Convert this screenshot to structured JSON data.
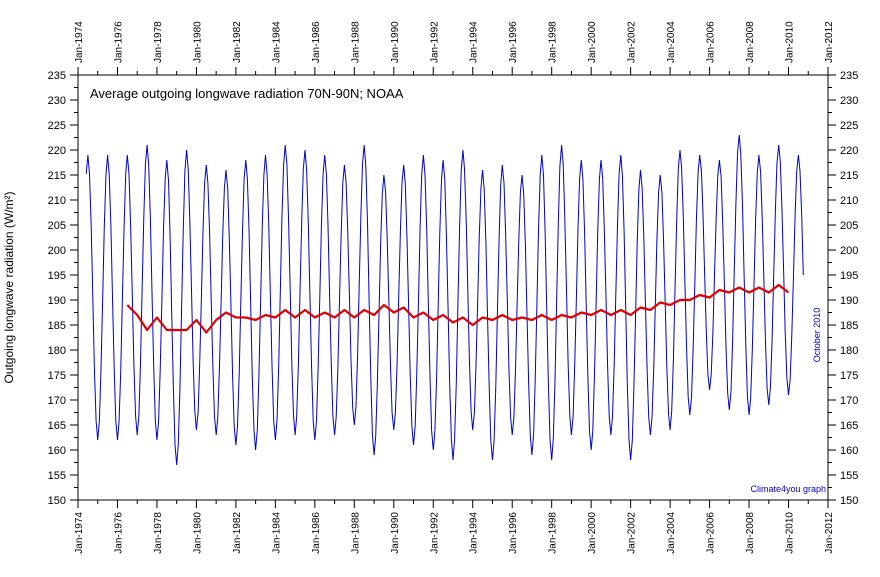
{
  "chart_data": {
    "type": "line",
    "title": "Average outgoing longwave radiation 70N-90N; NOAA",
    "ylabel": "Outgoing longwave radiation (W/m²)",
    "xlabel": "",
    "ylim": [
      150,
      235
    ],
    "xlim": [
      "Jan-1974",
      "Jan-2012"
    ],
    "yticks": [
      150,
      155,
      160,
      165,
      170,
      175,
      180,
      185,
      190,
      195,
      200,
      205,
      210,
      215,
      220,
      225,
      230,
      235
    ],
    "xticks": [
      "Jan-1974",
      "Jan-1976",
      "Jan-1978",
      "Jan-1980",
      "Jan-1982",
      "Jan-1984",
      "Jan-1986",
      "Jan-1988",
      "Jan-1990",
      "Jan-1992",
      "Jan-1994",
      "Jan-1996",
      "Jan-1998",
      "Jan-2000",
      "Jan-2002",
      "Jan-2004",
      "Jan-2006",
      "Jan-2008",
      "Jan-2010",
      "Jan-2012"
    ],
    "grid": false,
    "annotations": [
      "October 2010",
      "Climate4you graph"
    ],
    "series": [
      {
        "color": "#0000cc",
        "style": "monthly",
        "monthly_from": "Jun-1974",
        "annual_extremes": [
          {
            "year": 1974,
            "min": null,
            "max": 219
          },
          {
            "year": 1975,
            "min": 162,
            "max": 219
          },
          {
            "year": 1976,
            "min": 162,
            "max": 219
          },
          {
            "year": 1977,
            "min": 163,
            "max": 221
          },
          {
            "year": 1978,
            "min": 162,
            "max": null
          },
          {
            "year": 1979,
            "min": 157,
            "max": 220
          },
          {
            "year": 1980,
            "min": 164,
            "max": 217
          },
          {
            "year": 1981,
            "min": 163,
            "max": 216
          },
          {
            "year": 1982,
            "min": 161,
            "max": 218
          },
          {
            "year": 1983,
            "min": 160,
            "max": 219
          },
          {
            "year": 1984,
            "min": 162,
            "max": 221
          },
          {
            "year": 1985,
            "min": 163,
            "max": 220
          },
          {
            "year": 1986,
            "min": 162,
            "max": 219
          },
          {
            "year": 1987,
            "min": 163,
            "max": 217
          },
          {
            "year": 1988,
            "min": 165,
            "max": 221
          },
          {
            "year": 1989,
            "min": 159,
            "max": 215
          },
          {
            "year": 1990,
            "min": 164,
            "max": 217
          },
          {
            "year": 1991,
            "min": 161,
            "max": 219
          },
          {
            "year": 1992,
            "min": 160,
            "max": 218
          },
          {
            "year": 1993,
            "min": 158,
            "max": 220
          },
          {
            "year": 1994,
            "min": 164,
            "max": 216
          },
          {
            "year": 1995,
            "min": 158,
            "max": 217
          },
          {
            "year": 1996,
            "min": 163,
            "max": 215
          },
          {
            "year": 1997,
            "min": 159,
            "max": 219
          },
          {
            "year": 1998,
            "min": 158,
            "max": 221
          },
          {
            "year": 1999,
            "min": 163,
            "max": 218
          },
          {
            "year": 2000,
            "min": 160,
            "max": 218
          },
          {
            "year": 2001,
            "min": 163,
            "max": 219
          },
          {
            "year": 2002,
            "min": 158,
            "max": 216
          },
          {
            "year": 2003,
            "min": 163,
            "max": 215
          },
          {
            "year": 2004,
            "min": 164,
            "max": 220
          },
          {
            "year": 2005,
            "min": 167,
            "max": 219
          },
          {
            "year": 2006,
            "min": 172,
            "max": 218
          },
          {
            "year": 2007,
            "min": 168,
            "max": 223
          },
          {
            "year": 2008,
            "min": 167,
            "max": 219
          },
          {
            "year": 2009,
            "min": 169,
            "max": 221
          },
          {
            "year": 2010,
            "min": 171,
            "max": 219
          }
        ]
      },
      {
        "color": "#e00000",
        "style": "running-mean",
        "x": [
          "Jul-1976",
          "Jan-1977",
          "Jul-1977",
          "Jan-1978",
          "Jul-1978",
          "Jan-1979",
          "Jul-1979",
          "Jan-1980",
          "Jul-1980",
          "Jan-1981",
          "Jul-1981",
          "Jan-1982",
          "Jul-1982",
          "Jan-1983",
          "Jul-1983",
          "Jan-1984",
          "Jul-1984",
          "Jan-1985",
          "Jul-1985",
          "Jan-1986",
          "Jul-1986",
          "Jan-1987",
          "Jul-1987",
          "Jan-1988",
          "Jul-1988",
          "Jan-1989",
          "Jul-1989",
          "Jan-1990",
          "Jul-1990",
          "Jan-1991",
          "Jul-1991",
          "Jan-1992",
          "Jul-1992",
          "Jan-1993",
          "Jul-1993",
          "Jan-1994",
          "Jul-1994",
          "Jan-1995",
          "Jul-1995",
          "Jan-1996",
          "Jul-1996",
          "Jan-1997",
          "Jul-1997",
          "Jan-1998",
          "Jul-1998",
          "Jan-1999",
          "Jul-1999",
          "Jan-2000",
          "Jul-2000",
          "Jan-2001",
          "Jul-2001",
          "Jan-2002",
          "Jul-2002",
          "Jan-2003",
          "Jul-2003",
          "Jan-2004",
          "Jul-2004",
          "Jan-2005",
          "Jul-2005",
          "Jan-2006",
          "Jul-2006",
          "Jan-2007",
          "Jul-2007",
          "Jan-2008",
          "Jul-2008",
          "Jan-2009",
          "Jul-2009",
          "Jan-2010"
        ],
        "values": [
          189,
          187,
          184,
          186.5,
          184,
          184,
          184,
          186,
          183.5,
          186,
          187.5,
          186.5,
          186.5,
          186,
          187,
          186.5,
          188,
          186.5,
          188,
          186.5,
          187.5,
          186.5,
          188,
          186.5,
          188,
          187,
          189,
          187.5,
          188.5,
          186.5,
          187.5,
          186,
          187,
          185.5,
          186.5,
          185,
          186.5,
          186,
          187,
          186,
          186.5,
          186,
          187,
          186,
          187,
          186.5,
          187.5,
          187,
          188,
          187,
          188,
          187,
          188.5,
          188,
          189.5,
          189,
          190,
          190,
          191,
          190.5,
          192,
          191.5,
          192.5,
          191.5,
          192.5,
          191.5,
          193,
          191.5
        ]
      }
    ]
  }
}
